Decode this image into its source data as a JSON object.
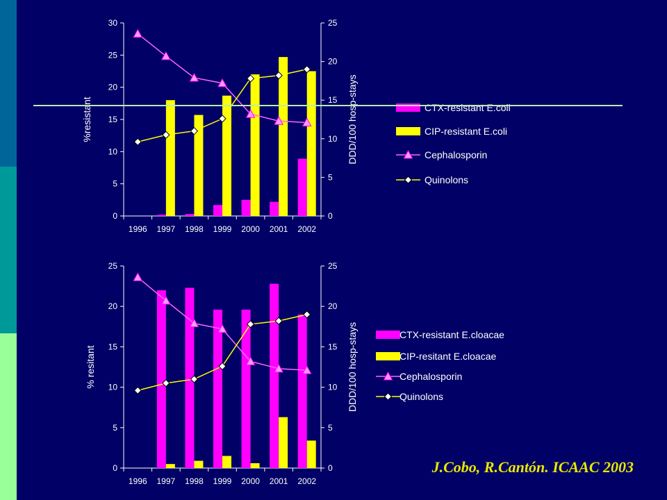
{
  "colors": {
    "background": "#000066",
    "strip": [
      "#006699",
      "#009999",
      "#99ff99"
    ],
    "divider": "#b8ecb0",
    "magenta": "#ff00ff",
    "yellow": "#ffff00",
    "cephalosporin_line": "#ff66ff",
    "quinolons_line": "#ffff00",
    "axis_text": "#ffffff",
    "citation": "#e8e800"
  },
  "citation": "J.Cobo, R.Cantón. ICAAC 2003",
  "chart_data": [
    {
      "type": "bar",
      "categories": [
        "1996",
        "1997",
        "1998",
        "1999",
        "2000",
        "2001",
        "2002"
      ],
      "ylabel": "%resistant",
      "ylim": [
        0,
        30
      ],
      "yticks": [
        0,
        5,
        10,
        15,
        20,
        25,
        30
      ],
      "y2label": "DDD/100 hosp-stays",
      "y2lim": [
        0,
        25
      ],
      "y2ticks": [
        0,
        5,
        10,
        15,
        20,
        25
      ],
      "legend_position": "right",
      "series": [
        {
          "name": "CTX-resistant E.coli",
          "kind": "bar",
          "axis": "left",
          "color": "#ff00ff",
          "values": [
            0,
            0.2,
            0.3,
            1.7,
            2.5,
            2.2,
            8.9
          ]
        },
        {
          "name": "CIP-resistant E.coli",
          "kind": "bar",
          "axis": "left",
          "color": "#ffff00",
          "values": [
            0,
            18.0,
            15.7,
            18.7,
            22.0,
            24.7,
            22.5
          ]
        },
        {
          "name": "Cephalosporin",
          "kind": "line",
          "marker": "triangle",
          "axis": "right",
          "color": "#ff66ff",
          "values": [
            23.6,
            20.7,
            17.9,
            17.2,
            13.2,
            12.3,
            12.1
          ]
        },
        {
          "name": "Quinolons",
          "kind": "line",
          "marker": "diamond",
          "axis": "right",
          "color": "#ffff00",
          "values": [
            9.6,
            10.5,
            11.0,
            12.6,
            17.8,
            18.2,
            19.0
          ]
        }
      ]
    },
    {
      "type": "bar",
      "categories": [
        "1996",
        "1997",
        "1998",
        "1999",
        "2000",
        "2001",
        "2002"
      ],
      "ylabel": "% resitant",
      "ylim": [
        0,
        25
      ],
      "yticks": [
        0,
        5,
        10,
        15,
        20,
        25
      ],
      "y2label": "DDD/100 hosp-stays",
      "y2lim": [
        0,
        25
      ],
      "y2ticks": [
        0,
        5,
        10,
        15,
        20,
        25
      ],
      "legend_position": "right",
      "series": [
        {
          "name": "CTX-resistant E.cloacae",
          "kind": "bar",
          "axis": "left",
          "color": "#ff00ff",
          "values": [
            0,
            22.0,
            22.3,
            19.6,
            19.6,
            22.8,
            19.0
          ]
        },
        {
          "name": "CIP-resitant E.cloacae",
          "kind": "bar",
          "axis": "left",
          "color": "#ffff00",
          "values": [
            0,
            0.5,
            0.9,
            1.5,
            0.6,
            6.3,
            3.4
          ]
        },
        {
          "name": "Cephalosporin",
          "kind": "line",
          "marker": "triangle",
          "axis": "right",
          "color": "#ff66ff",
          "values": [
            23.6,
            20.7,
            17.9,
            17.2,
            13.2,
            12.3,
            12.1
          ]
        },
        {
          "name": "Quinolons",
          "kind": "line",
          "marker": "diamond",
          "axis": "right",
          "color": "#ffff00",
          "values": [
            9.6,
            10.5,
            11.0,
            12.6,
            17.8,
            18.2,
            19.0
          ]
        }
      ]
    }
  ]
}
